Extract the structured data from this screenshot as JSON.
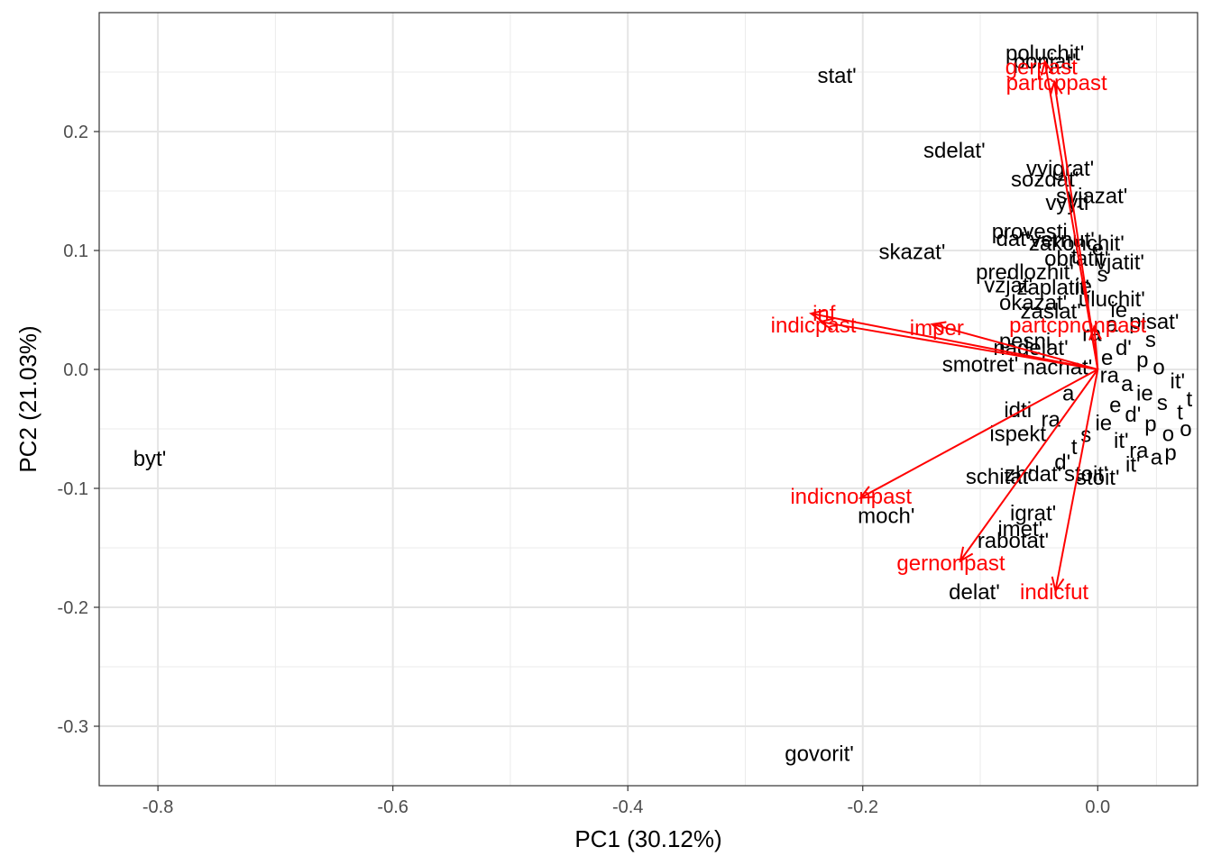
{
  "chart_data": {
    "type": "scatter",
    "subtype": "pca-biplot",
    "title": "",
    "xlabel": "PC1 (30.12%)",
    "ylabel": "PC2 (21.03%)",
    "xlim": [
      -0.85,
      0.085
    ],
    "ylim": [
      -0.35,
      0.3
    ],
    "grid": true,
    "x_ticks": [
      -0.8,
      -0.6,
      -0.4,
      -0.2,
      0.0
    ],
    "x_tick_labels": [
      "-0.8",
      "-0.6",
      "-0.4",
      "-0.2",
      "0.0"
    ],
    "y_ticks": [
      -0.3,
      -0.2,
      -0.1,
      0.0,
      0.1,
      0.2
    ],
    "y_tick_labels": [
      "-0.3",
      "-0.2",
      "-0.1",
      "0.0",
      "0.1",
      "0.2"
    ],
    "colors": {
      "words": "#000000",
      "loadings": "#ff0000",
      "grid": "#ebebeb",
      "panel_border": "#333333"
    },
    "words": [
      {
        "label": "poluchit'",
        "x": -0.045,
        "y": 0.266
      },
      {
        "label": "ponjat'",
        "x": -0.045,
        "y": 0.259
      },
      {
        "label": "stat'",
        "x": -0.222,
        "y": 0.247
      },
      {
        "label": "sdelat'",
        "x": -0.122,
        "y": 0.184
      },
      {
        "label": "vyigrat'",
        "x": -0.032,
        "y": 0.169
      },
      {
        "label": "sozdat'",
        "x": -0.045,
        "y": 0.16
      },
      {
        "label": "svjazat'",
        "x": -0.005,
        "y": 0.146
      },
      {
        "label": "vyyti",
        "x": -0.026,
        "y": 0.14
      },
      {
        "label": "provesti",
        "x": -0.058,
        "y": 0.116
      },
      {
        "label": "dat'",
        "x": -0.072,
        "y": 0.11
      },
      {
        "label": "vernut'",
        "x": -0.03,
        "y": 0.109
      },
      {
        "label": "zakonchit'",
        "x": -0.018,
        "y": 0.106
      },
      {
        "label": "skazat'",
        "x": -0.158,
        "y": 0.099
      },
      {
        "label": "obratit'",
        "x": -0.018,
        "y": 0.093
      },
      {
        "label": "vjatit'",
        "x": 0.019,
        "y": 0.09
      },
      {
        "label": "predlozhit'",
        "x": -0.062,
        "y": 0.082
      },
      {
        "label": "vzjat'",
        "x": -0.076,
        "y": 0.071
      },
      {
        "label": "zaplatit'",
        "x": -0.038,
        "y": 0.069
      },
      {
        "label": "okazat'",
        "x": -0.055,
        "y": 0.056
      },
      {
        "label": "uluchit'",
        "x": 0.012,
        "y": 0.059
      },
      {
        "label": "zaslat'",
        "x": -0.04,
        "y": 0.049
      },
      {
        "label": "pisat'",
        "x": 0.048,
        "y": 0.04
      },
      {
        "label": "pesni",
        "x": -0.062,
        "y": 0.024
      },
      {
        "label": "nadejat'",
        "x": -0.057,
        "y": 0.018
      },
      {
        "label": "smotret'",
        "x": -0.1,
        "y": 0.004
      },
      {
        "label": "nachat'",
        "x": -0.034,
        "y": 0.002
      },
      {
        "label": "idti",
        "x": -0.068,
        "y": -0.034
      },
      {
        "label": "ispekt",
        "x": -0.068,
        "y": -0.054
      },
      {
        "label": "zhdat'",
        "x": -0.055,
        "y": -0.088
      },
      {
        "label": "schitat'",
        "x": -0.084,
        "y": -0.09
      },
      {
        "label": "stoit'",
        "x": 0.0,
        "y": -0.091
      },
      {
        "label": "stoit'",
        "x": -0.01,
        "y": -0.088
      },
      {
        "label": "moch'",
        "x": -0.18,
        "y": -0.123
      },
      {
        "label": "igrat'",
        "x": -0.055,
        "y": -0.121
      },
      {
        "label": "imet'",
        "x": -0.066,
        "y": -0.134
      },
      {
        "label": "rabotat'",
        "x": -0.072,
        "y": -0.144
      },
      {
        "label": "delat'",
        "x": -0.105,
        "y": -0.187
      },
      {
        "label": "govorit'",
        "x": -0.237,
        "y": -0.323
      },
      {
        "label": "byt'",
        "x": -0.807,
        "y": -0.075
      }
    ],
    "cluster_words": [
      {
        "x": 0.01,
        "y": -0.005
      },
      {
        "x": 0.025,
        "y": -0.012
      },
      {
        "x": 0.04,
        "y": -0.02
      },
      {
        "x": 0.055,
        "y": -0.028
      },
      {
        "x": 0.07,
        "y": -0.036
      },
      {
        "x": 0.015,
        "y": -0.03
      },
      {
        "x": 0.03,
        "y": -0.038
      },
      {
        "x": 0.045,
        "y": -0.046
      },
      {
        "x": 0.06,
        "y": -0.054
      },
      {
        "x": 0.02,
        "y": -0.06
      },
      {
        "x": 0.035,
        "y": -0.068
      },
      {
        "x": 0.05,
        "y": -0.074
      },
      {
        "x": 0.005,
        "y": -0.045
      },
      {
        "x": -0.01,
        "y": -0.055
      },
      {
        "x": -0.02,
        "y": -0.065
      },
      {
        "x": 0.008,
        "y": 0.01
      },
      {
        "x": 0.022,
        "y": 0.018
      },
      {
        "x": 0.038,
        "y": 0.008
      },
      {
        "x": 0.052,
        "y": 0.002
      },
      {
        "x": 0.068,
        "y": -0.01
      },
      {
        "x": -0.005,
        "y": 0.03
      },
      {
        "x": 0.012,
        "y": 0.038
      },
      {
        "x": -0.012,
        "y": 0.07
      },
      {
        "x": 0.004,
        "y": 0.08
      },
      {
        "x": -0.02,
        "y": 0.095
      },
      {
        "x": 0.0,
        "y": 0.102
      },
      {
        "x": -0.03,
        "y": -0.078
      },
      {
        "x": 0.062,
        "y": -0.07
      },
      {
        "x": 0.075,
        "y": -0.05
      },
      {
        "x": 0.03,
        "y": -0.08
      },
      {
        "x": -0.04,
        "y": -0.042
      },
      {
        "x": -0.025,
        "y": -0.02
      },
      {
        "x": 0.018,
        "y": 0.05
      },
      {
        "x": 0.045,
        "y": 0.025
      },
      {
        "x": 0.078,
        "y": -0.025
      }
    ],
    "cluster_label_fragments": [
      "ra",
      "a",
      "ie",
      "s",
      "t",
      "e",
      "d'",
      "p",
      "o",
      "it'"
    ],
    "loadings": [
      {
        "label": "gerpast",
        "x": -0.045,
        "y": 0.259
      },
      {
        "label": "partcppast",
        "x": -0.037,
        "y": 0.242
      },
      {
        "label": "inf",
        "x": -0.244,
        "y": 0.047
      },
      {
        "label": "indicpast",
        "x": -0.236,
        "y": 0.04
      },
      {
        "label": "imper",
        "x": -0.141,
        "y": 0.038
      },
      {
        "label": "partcpnonpast",
        "x": -0.003,
        "y": 0.036
      },
      {
        "label": "indicnonpast",
        "x": -0.202,
        "y": -0.108
      },
      {
        "label": "gernonpast",
        "x": -0.117,
        "y": -0.161
      },
      {
        "label": "indicfut",
        "x": -0.036,
        "y": -0.186
      }
    ],
    "loading_label_positions": [
      {
        "label": "gerpast",
        "x": -0.048,
        "y": 0.254
      },
      {
        "label": "partcppast",
        "x": -0.035,
        "y": 0.241
      },
      {
        "label": "inf",
        "x": -0.233,
        "y": 0.047
      },
      {
        "label": "indicpast",
        "x": -0.242,
        "y": 0.037
      },
      {
        "label": "imper",
        "x": -0.137,
        "y": 0.035
      },
      {
        "label": "partcpnonpast",
        "x": -0.017,
        "y": 0.037
      },
      {
        "label": "indicnonpast",
        "x": -0.21,
        "y": -0.107
      },
      {
        "label": "gernonpast",
        "x": -0.125,
        "y": -0.163
      },
      {
        "label": "indicfut",
        "x": -0.037,
        "y": -0.187
      }
    ]
  }
}
